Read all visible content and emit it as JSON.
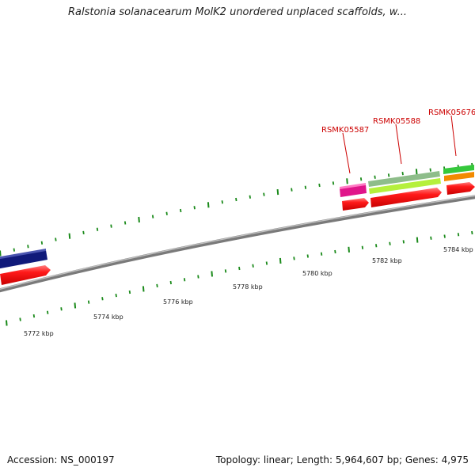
{
  "title": "Ralstonia solanacearum MolK2 unordered unplaced scaffolds, w...",
  "footer": {
    "accession": "Accession: NS_000197",
    "stats": "Topology: linear; Length: 5,964,607 bp; Genes: 4,975"
  },
  "axis": {
    "ticks": [
      {
        "label": "5772 kbp"
      },
      {
        "label": "5774 kbp"
      },
      {
        "label": "5776 kbp"
      },
      {
        "label": "5778 kbp"
      },
      {
        "label": "5780 kbp"
      },
      {
        "label": "5782 kbp"
      },
      {
        "label": "5784 kbp"
      }
    ]
  },
  "genes": [
    {
      "name": "RSMK05587",
      "color": "#e0158a"
    },
    {
      "name": "RSMK05588",
      "color": "#b5f03c"
    },
    {
      "name": "RSMK05676",
      "color": "#f28a00"
    }
  ],
  "colors": {
    "forward_strand_gene": "#ff2020",
    "track_navy": "#101a7a",
    "track_green": "#35c83c",
    "track_sage": "#8ebd8a",
    "tick": "#1a8a1a",
    "backbone": "#8a8a8a"
  }
}
